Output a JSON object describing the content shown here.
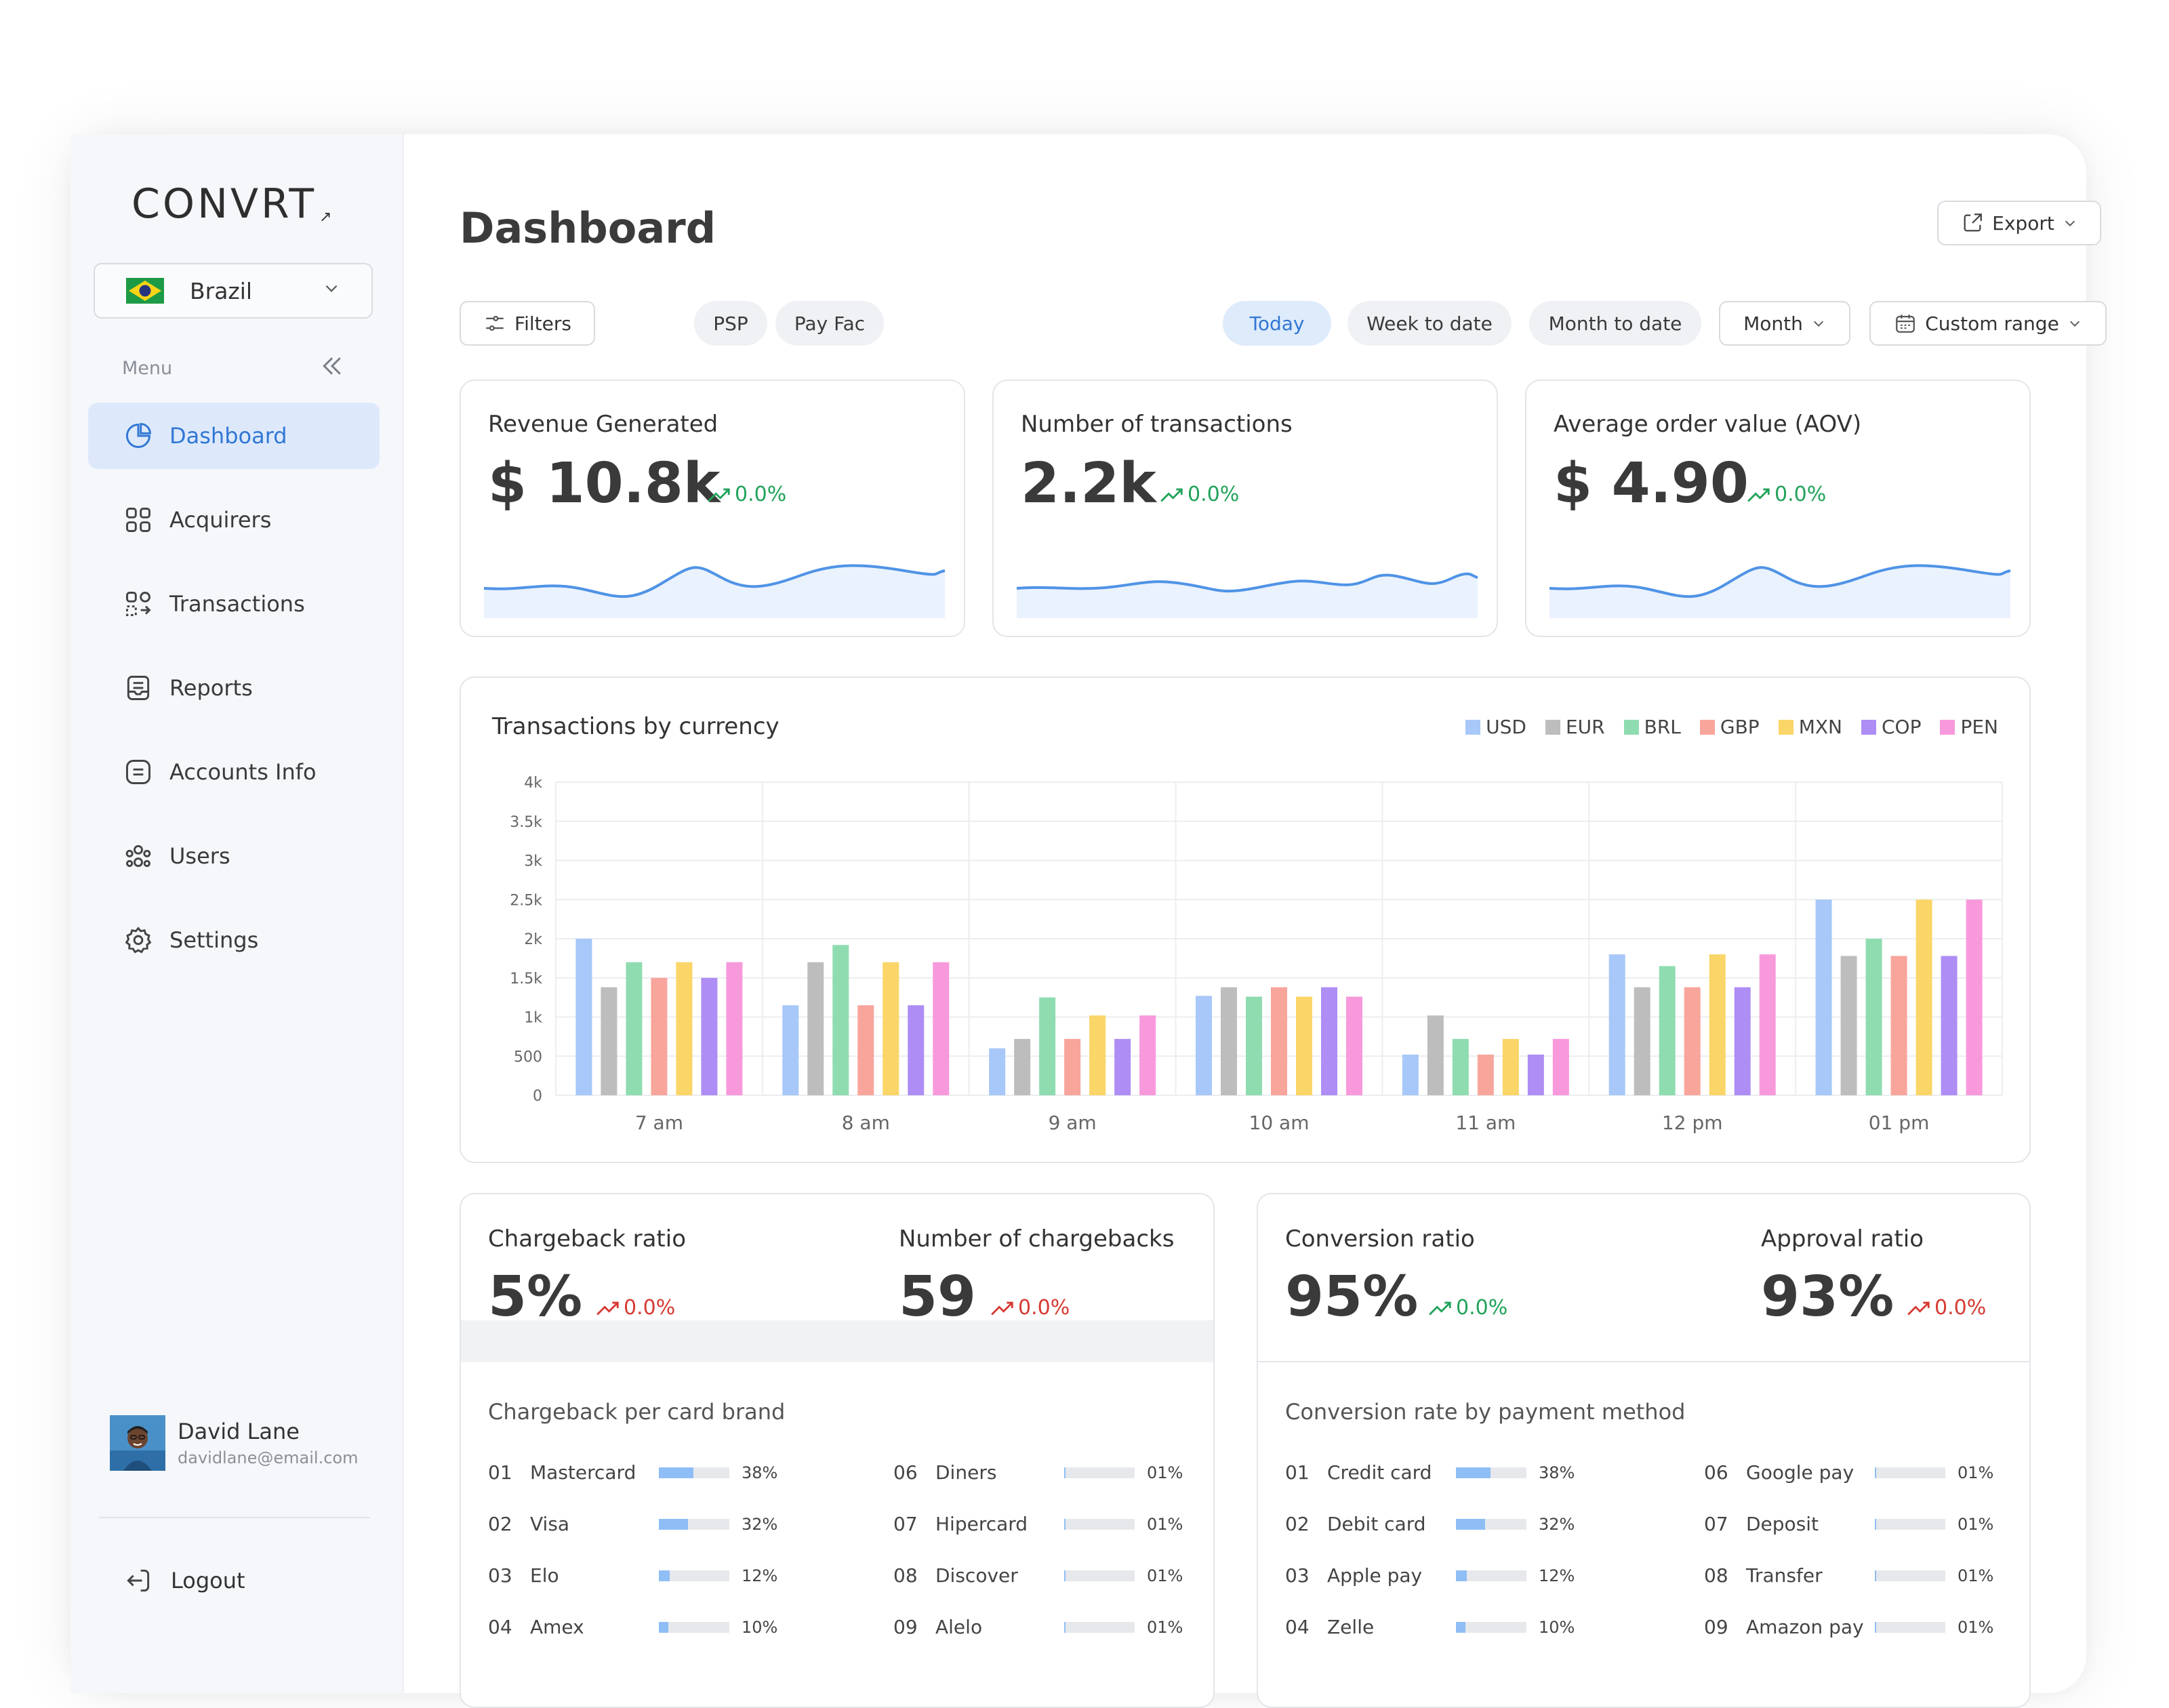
{
  "app": {
    "logo": "CONVRT",
    "country": "Brazil",
    "menu_label": "Menu",
    "nav": [
      {
        "label": "Dashboard",
        "icon": "pie-chart-icon",
        "active": true
      },
      {
        "label": "Acquirers",
        "icon": "grid-icon"
      },
      {
        "label": "Transactions",
        "icon": "transactions-icon"
      },
      {
        "label": "Reports",
        "icon": "report-icon"
      },
      {
        "label": "Accounts Info",
        "icon": "account-icon"
      },
      {
        "label": "Users",
        "icon": "users-icon"
      },
      {
        "label": "Settings",
        "icon": "gear-icon"
      }
    ],
    "user": {
      "name": "David Lane",
      "email": "davidlane@email.com"
    },
    "logout": "Logout"
  },
  "header": {
    "title": "Dashboard",
    "export": "Export",
    "filters": "Filters",
    "psp": "PSP",
    "payfac": "Pay Fac",
    "ranges": [
      "Today",
      "Week to date",
      "Month to date"
    ],
    "month": "Month",
    "custom": "Custom range"
  },
  "kpis": [
    {
      "title": "Revenue Generated",
      "value": "$ 10.8k",
      "change": "0.0%",
      "trend": "up"
    },
    {
      "title": "Number of transactions",
      "value": "2.2k",
      "change": "0.0%",
      "trend": "up"
    },
    {
      "title": "Average order value (AOV)",
      "value": "$ 4.90",
      "change": "0.0%",
      "trend": "up"
    }
  ],
  "chart_data": {
    "type": "bar",
    "title": "Transactions by currency",
    "categories": [
      "7 am",
      "8 am",
      "9 am",
      "10 am",
      "11 am",
      "12 pm",
      "01 pm"
    ],
    "y_ticks": [
      "0",
      "500",
      "1k",
      "1.5k",
      "2k",
      "2.5k",
      "3k",
      "3.5k",
      "4k"
    ],
    "ylim": [
      0,
      4000
    ],
    "legend_position": "top-right",
    "grid": true,
    "series": [
      {
        "name": "USD",
        "color": "#a7c8f8",
        "values": [
          2000,
          1150,
          600,
          1270,
          520,
          1800,
          2500
        ]
      },
      {
        "name": "EUR",
        "color": "#bdbdbd",
        "values": [
          1380,
          1700,
          720,
          1380,
          1020,
          1380,
          1780
        ]
      },
      {
        "name": "BRL",
        "color": "#8fdcb0",
        "values": [
          1700,
          1920,
          1250,
          1260,
          720,
          1650,
          2000
        ]
      },
      {
        "name": "GBP",
        "color": "#f8a59c",
        "values": [
          1500,
          1150,
          720,
          1380,
          520,
          1380,
          1780
        ]
      },
      {
        "name": "MXN",
        "color": "#fad567",
        "values": [
          1700,
          1700,
          1020,
          1260,
          720,
          1800,
          2500
        ]
      },
      {
        "name": "COP",
        "color": "#ae8df4",
        "values": [
          1500,
          1150,
          720,
          1380,
          520,
          1380,
          1780
        ]
      },
      {
        "name": "PEN",
        "color": "#f899dc",
        "values": [
          1700,
          1700,
          1020,
          1260,
          720,
          1800,
          2500
        ]
      }
    ]
  },
  "chargeback": {
    "ratio_label": "Chargeback ratio",
    "ratio_value": "5%",
    "ratio_change": "0.0%",
    "count_label": "Number of chargebacks",
    "count_value": "59",
    "count_change": "0.0%",
    "list_title": "Chargeback per card brand",
    "items": [
      {
        "idx": "01",
        "name": "Mastercard",
        "pct": "38%",
        "value": 0.38
      },
      {
        "idx": "02",
        "name": "Visa",
        "pct": "32%",
        "value": 0.32
      },
      {
        "idx": "03",
        "name": "Elo",
        "pct": "12%",
        "value": 0.12
      },
      {
        "idx": "04",
        "name": "Amex",
        "pct": "10%",
        "value": 0.1
      },
      {
        "idx": "06",
        "name": "Diners",
        "pct": "01%",
        "value": 0.01
      },
      {
        "idx": "07",
        "name": "Hipercard",
        "pct": "01%",
        "value": 0.01
      },
      {
        "idx": "08",
        "name": "Discover",
        "pct": "01%",
        "value": 0.01
      },
      {
        "idx": "09",
        "name": "Alelo",
        "pct": "01%",
        "value": 0.01
      }
    ]
  },
  "conversion": {
    "ratio_label": "Conversion ratio",
    "ratio_value": "95%",
    "ratio_change": "0.0%",
    "approval_label": "Approval ratio",
    "approval_value": "93%",
    "approval_change": "0.0%",
    "list_title": "Conversion rate by payment method",
    "items": [
      {
        "idx": "01",
        "name": "Credit card",
        "pct": "38%",
        "value": 0.38
      },
      {
        "idx": "02",
        "name": "Debit card",
        "pct": "32%",
        "value": 0.32
      },
      {
        "idx": "03",
        "name": "Apple pay",
        "pct": "12%",
        "value": 0.12
      },
      {
        "idx": "04",
        "name": "Zelle",
        "pct": "10%",
        "value": 0.1
      },
      {
        "idx": "06",
        "name": "Google pay",
        "pct": "01%",
        "value": 0.01
      },
      {
        "idx": "07",
        "name": "Deposit",
        "pct": "01%",
        "value": 0.01
      },
      {
        "idx": "08",
        "name": "Transfer",
        "pct": "01%",
        "value": 0.01
      },
      {
        "idx": "09",
        "name": "Amazon pay",
        "pct": "01%",
        "value": 0.01
      }
    ]
  }
}
